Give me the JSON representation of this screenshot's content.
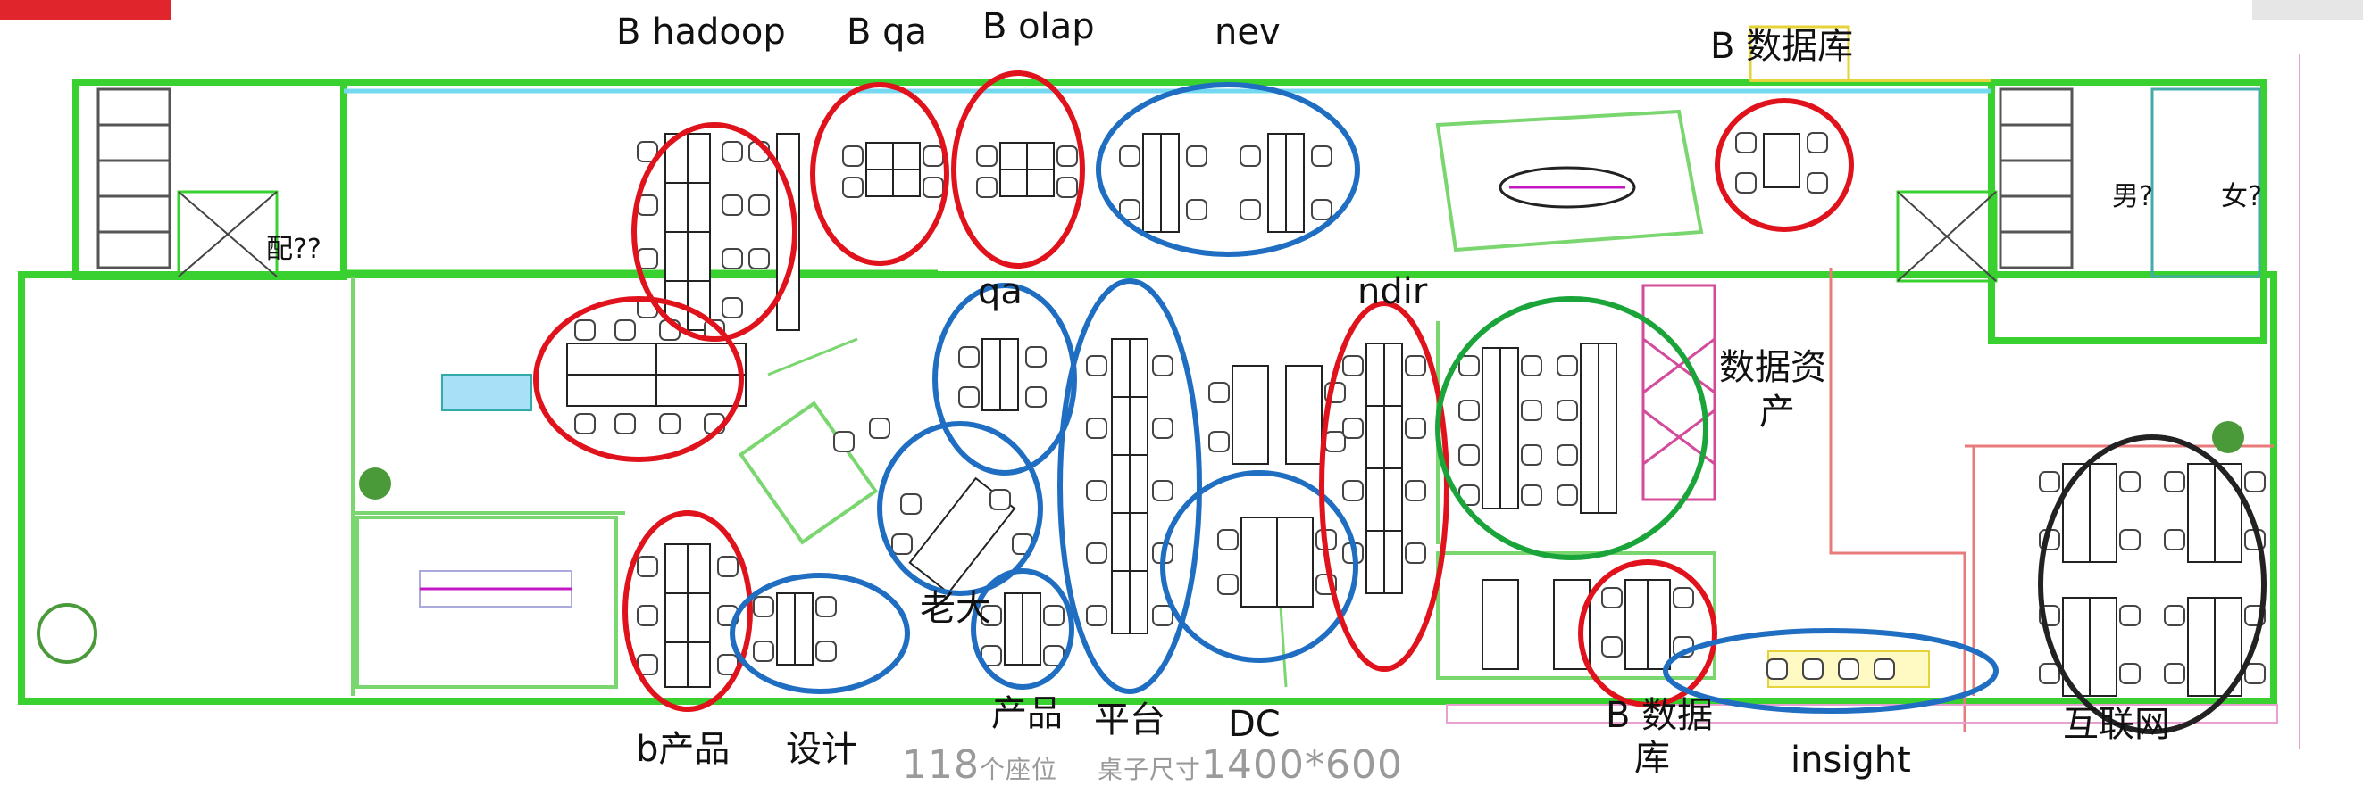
{
  "labels": {
    "b_hadoop": "B hadoop",
    "b_qa": "B qa",
    "b_olap": "B olap",
    "nev": "nev",
    "b_db_top": "B 数据库",
    "qa": "qa",
    "ndir": "ndir",
    "data_asset_1": "数据资",
    "data_asset_2": "产",
    "laoda": "老大",
    "b_product": "b产品",
    "design": "设计",
    "product": "产品",
    "platform": "平台",
    "dc": "DC",
    "b_db_bottom_1": "B 数据",
    "b_db_bottom_2": "库",
    "insight": "insight",
    "internet": "互联网",
    "hand_q1": "男?",
    "hand_q2": "女?",
    "hand_q3": "配??"
  },
  "footer": {
    "seat_count": "118",
    "seat_unit": "个座位",
    "desk_size_label": "桌子尺寸",
    "desk_size": "1400*600"
  },
  "colors": {
    "wall": "#39d12f",
    "red_circle": "#e0121c",
    "blue_circle": "#1f6ec2",
    "green_circle": "#1aa43a",
    "black_circle": "#222222",
    "room_line": "#7ad66f",
    "yellow_line": "#f0e060",
    "pink_line": "#e87aa0"
  }
}
